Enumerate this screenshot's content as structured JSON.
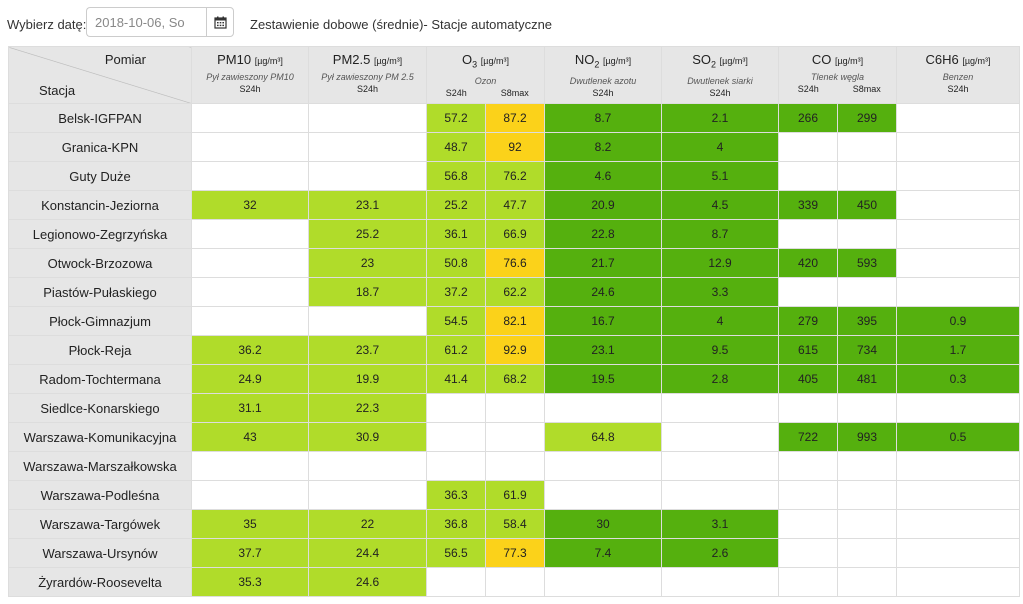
{
  "toolbar": {
    "date_label": "Wybierz datę:",
    "date_value": "2018-10-06, So",
    "calendar_icon": "calendar-icon",
    "title": "Zestawienie dobowe (średnie)- Stacje automatyczne"
  },
  "table": {
    "corner_top": "Pomiar",
    "corner_bottom": "Stacja",
    "headers": [
      {
        "name": "PM10",
        "sub": "",
        "unit": "[µg/m³]",
        "desc": "Pył zawieszony PM10",
        "cols": [
          "S24h"
        ]
      },
      {
        "name": "PM2.5",
        "sub": "",
        "unit": "[µg/m³]",
        "desc": "Pył zawieszony PM 2.5",
        "cols": [
          "S24h"
        ]
      },
      {
        "name": "O",
        "sub": "3",
        "unit": "[µg/m³]",
        "desc": "Ozon",
        "cols": [
          "S24h",
          "S8max"
        ]
      },
      {
        "name": "NO",
        "sub": "2",
        "unit": "[µg/m³]",
        "desc": "Dwutlenek azotu",
        "cols": [
          "S24h"
        ]
      },
      {
        "name": "SO",
        "sub": "2",
        "unit": "[µg/m³]",
        "desc": "Dwutlenek siarki",
        "cols": [
          "S24h"
        ]
      },
      {
        "name": "CO",
        "sub": "",
        "unit": "[µg/m³]",
        "desc": "Tlenek węgla",
        "cols": [
          "S24h",
          "S8max"
        ]
      },
      {
        "name": "C6H6",
        "sub": "",
        "unit": "[µg/m³]",
        "desc": "Benzen",
        "cols": [
          "S24h"
        ]
      }
    ],
    "level_colors": {
      "light": "#b0dc2a",
      "dark": "#55b00e",
      "yellow": "#fbd21a",
      "empty": "#ffffff"
    },
    "rows": [
      {
        "station": "Belsk-IGFPAN",
        "cells": [
          [
            "",
            ""
          ],
          [
            "",
            ""
          ],
          [
            "57.2",
            "light"
          ],
          [
            "87.2",
            "yellow"
          ],
          [
            "8.7",
            "dark"
          ],
          [
            "2.1",
            "dark"
          ],
          [
            "266",
            "dark"
          ],
          [
            "299",
            "dark"
          ],
          [
            "",
            ""
          ]
        ]
      },
      {
        "station": "Granica-KPN",
        "cells": [
          [
            "",
            ""
          ],
          [
            "",
            ""
          ],
          [
            "48.7",
            "light"
          ],
          [
            "92",
            "yellow"
          ],
          [
            "8.2",
            "dark"
          ],
          [
            "4",
            "dark"
          ],
          [
            "",
            ""
          ],
          [
            "",
            ""
          ],
          [
            "",
            ""
          ]
        ]
      },
      {
        "station": "Guty Duże",
        "cells": [
          [
            "",
            ""
          ],
          [
            "",
            ""
          ],
          [
            "56.8",
            "light"
          ],
          [
            "76.2",
            "light"
          ],
          [
            "4.6",
            "dark"
          ],
          [
            "5.1",
            "dark"
          ],
          [
            "",
            ""
          ],
          [
            "",
            ""
          ],
          [
            "",
            ""
          ]
        ]
      },
      {
        "station": "Konstancin-Jeziorna",
        "cells": [
          [
            "32",
            "light"
          ],
          [
            "23.1",
            "light"
          ],
          [
            "25.2",
            "light"
          ],
          [
            "47.7",
            "light"
          ],
          [
            "20.9",
            "dark"
          ],
          [
            "4.5",
            "dark"
          ],
          [
            "339",
            "dark"
          ],
          [
            "450",
            "dark"
          ],
          [
            "",
            ""
          ]
        ]
      },
      {
        "station": "Legionowo-Zegrzyńska",
        "cells": [
          [
            "",
            ""
          ],
          [
            "25.2",
            "light"
          ],
          [
            "36.1",
            "light"
          ],
          [
            "66.9",
            "light"
          ],
          [
            "22.8",
            "dark"
          ],
          [
            "8.7",
            "dark"
          ],
          [
            "",
            ""
          ],
          [
            "",
            ""
          ],
          [
            "",
            ""
          ]
        ]
      },
      {
        "station": "Otwock-Brzozowa",
        "cells": [
          [
            "",
            ""
          ],
          [
            "23",
            "light"
          ],
          [
            "50.8",
            "light"
          ],
          [
            "76.6",
            "yellow"
          ],
          [
            "21.7",
            "dark"
          ],
          [
            "12.9",
            "dark"
          ],
          [
            "420",
            "dark"
          ],
          [
            "593",
            "dark"
          ],
          [
            "",
            ""
          ]
        ]
      },
      {
        "station": "Piastów-Pułaskiego",
        "cells": [
          [
            "",
            ""
          ],
          [
            "18.7",
            "light"
          ],
          [
            "37.2",
            "light"
          ],
          [
            "62.2",
            "light"
          ],
          [
            "24.6",
            "dark"
          ],
          [
            "3.3",
            "dark"
          ],
          [
            "",
            ""
          ],
          [
            "",
            ""
          ],
          [
            "",
            ""
          ]
        ]
      },
      {
        "station": "Płock-Gimnazjum",
        "cells": [
          [
            "",
            ""
          ],
          [
            "",
            ""
          ],
          [
            "54.5",
            "light"
          ],
          [
            "82.1",
            "yellow"
          ],
          [
            "16.7",
            "dark"
          ],
          [
            "4",
            "dark"
          ],
          [
            "279",
            "dark"
          ],
          [
            "395",
            "dark"
          ],
          [
            "0.9",
            "dark"
          ]
        ]
      },
      {
        "station": "Płock-Reja",
        "cells": [
          [
            "36.2",
            "light"
          ],
          [
            "23.7",
            "light"
          ],
          [
            "61.2",
            "light"
          ],
          [
            "92.9",
            "yellow"
          ],
          [
            "23.1",
            "dark"
          ],
          [
            "9.5",
            "dark"
          ],
          [
            "615",
            "dark"
          ],
          [
            "734",
            "dark"
          ],
          [
            "1.7",
            "dark"
          ]
        ]
      },
      {
        "station": "Radom-Tochtermana",
        "cells": [
          [
            "24.9",
            "light"
          ],
          [
            "19.9",
            "light"
          ],
          [
            "41.4",
            "light"
          ],
          [
            "68.2",
            "light"
          ],
          [
            "19.5",
            "dark"
          ],
          [
            "2.8",
            "dark"
          ],
          [
            "405",
            "dark"
          ],
          [
            "481",
            "dark"
          ],
          [
            "0.3",
            "dark"
          ]
        ]
      },
      {
        "station": "Siedlce-Konarskiego",
        "cells": [
          [
            "31.1",
            "light"
          ],
          [
            "22.3",
            "light"
          ],
          [
            "",
            ""
          ],
          [
            "",
            ""
          ],
          [
            "",
            ""
          ],
          [
            "",
            ""
          ],
          [
            "",
            ""
          ],
          [
            "",
            ""
          ],
          [
            "",
            ""
          ]
        ]
      },
      {
        "station": "Warszawa-Komunikacyjna",
        "cells": [
          [
            "43",
            "light"
          ],
          [
            "30.9",
            "light"
          ],
          [
            "",
            ""
          ],
          [
            "",
            ""
          ],
          [
            "64.8",
            "light"
          ],
          [
            "",
            ""
          ],
          [
            "722",
            "dark"
          ],
          [
            "993",
            "dark"
          ],
          [
            "0.5",
            "dark"
          ]
        ]
      },
      {
        "station": "Warszawa-Marszałkowska",
        "cells": [
          [
            "",
            ""
          ],
          [
            "",
            ""
          ],
          [
            "",
            ""
          ],
          [
            "",
            ""
          ],
          [
            "",
            ""
          ],
          [
            "",
            ""
          ],
          [
            "",
            ""
          ],
          [
            "",
            ""
          ],
          [
            "",
            ""
          ]
        ]
      },
      {
        "station": "Warszawa-Podleśna",
        "cells": [
          [
            "",
            ""
          ],
          [
            "",
            ""
          ],
          [
            "36.3",
            "light"
          ],
          [
            "61.9",
            "light"
          ],
          [
            "",
            ""
          ],
          [
            "",
            ""
          ],
          [
            "",
            ""
          ],
          [
            "",
            ""
          ],
          [
            "",
            ""
          ]
        ]
      },
      {
        "station": "Warszawa-Targówek",
        "cells": [
          [
            "35",
            "light"
          ],
          [
            "22",
            "light"
          ],
          [
            "36.8",
            "light"
          ],
          [
            "58.4",
            "light"
          ],
          [
            "30",
            "dark"
          ],
          [
            "3.1",
            "dark"
          ],
          [
            "",
            ""
          ],
          [
            "",
            ""
          ],
          [
            "",
            ""
          ]
        ]
      },
      {
        "station": "Warszawa-Ursynów",
        "cells": [
          [
            "37.7",
            "light"
          ],
          [
            "24.4",
            "light"
          ],
          [
            "56.5",
            "light"
          ],
          [
            "77.3",
            "yellow"
          ],
          [
            "7.4",
            "dark"
          ],
          [
            "2.6",
            "dark"
          ],
          [
            "",
            ""
          ],
          [
            "",
            ""
          ],
          [
            "",
            ""
          ]
        ]
      },
      {
        "station": "Żyrardów-Roosevelta",
        "cells": [
          [
            "35.3",
            "light"
          ],
          [
            "24.6",
            "light"
          ],
          [
            "",
            ""
          ],
          [
            "",
            ""
          ],
          [
            "",
            ""
          ],
          [
            "",
            ""
          ],
          [
            "",
            ""
          ],
          [
            "",
            ""
          ],
          [
            "",
            ""
          ]
        ]
      }
    ]
  }
}
